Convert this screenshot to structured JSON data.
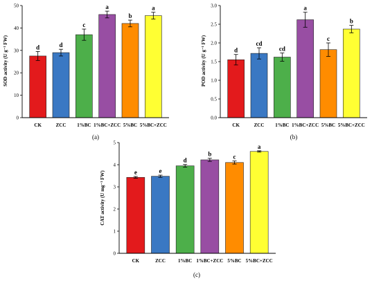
{
  "categories": [
    "CK",
    "ZCC",
    "1%BC",
    "1%BC+ZCC",
    "5%BC",
    "5%BC+ZCC"
  ],
  "bar_colors": [
    "#e31a1c",
    "#3a78c3",
    "#4daf4a",
    "#984ea3",
    "#ff8c00",
    "#ffff33"
  ],
  "chart_data": [
    {
      "type": "bar",
      "panel_label": "(a)",
      "ylabel": "SOD activity (U g⁻¹ FW)",
      "ylim": [
        0,
        50
      ],
      "yticks": [
        "0",
        "10",
        "20",
        "30",
        "40",
        "50"
      ],
      "categories": [
        "CK",
        "ZCC",
        "1%BC",
        "1%BC+ZCC",
        "5%BC",
        "5%BC+ZCC"
      ],
      "values": [
        27.5,
        29.0,
        37.0,
        46.0,
        42.0,
        45.5
      ],
      "errors": [
        2.0,
        1.5,
        2.5,
        1.5,
        1.5,
        1.5
      ],
      "significance": [
        "d",
        "d",
        "c",
        "a",
        "b",
        "a"
      ]
    },
    {
      "type": "bar",
      "panel_label": "(b)",
      "ylabel": "POD activity (U g⁻¹ FW)",
      "ylim": [
        0,
        3.0
      ],
      "yticks": [
        "0.0",
        "0.5",
        "1.0",
        "1.5",
        "2.0",
        "2.5",
        "3.0"
      ],
      "categories": [
        "CK",
        "ZCC",
        "1%BC",
        "1%BC+ZCC",
        "5%BC",
        "5%BC+ZCC"
      ],
      "values": [
        1.55,
        1.72,
        1.62,
        2.62,
        1.82,
        2.37
      ],
      "errors": [
        0.14,
        0.15,
        0.11,
        0.2,
        0.18,
        0.1
      ],
      "significance": [
        "d",
        "cd",
        "cd",
        "a",
        "c",
        "b"
      ]
    },
    {
      "type": "bar",
      "panel_label": "(c)",
      "ylabel": "CAT activity (U mg⁻¹ FW)",
      "ylim": [
        0,
        5
      ],
      "yticks": [
        "0",
        "1",
        "2",
        "3",
        "4",
        "5"
      ],
      "categories": [
        "CK",
        "ZCC",
        "1%BC",
        "1%BC+ZCC",
        "5%BC",
        "5%BC+ZCC"
      ],
      "values": [
        3.43,
        3.48,
        3.95,
        4.22,
        4.1,
        4.6
      ],
      "errors": [
        0.04,
        0.05,
        0.06,
        0.07,
        0.07,
        0.03
      ],
      "significance": [
        "e",
        "e",
        "d",
        "b",
        "c",
        "a"
      ]
    }
  ]
}
